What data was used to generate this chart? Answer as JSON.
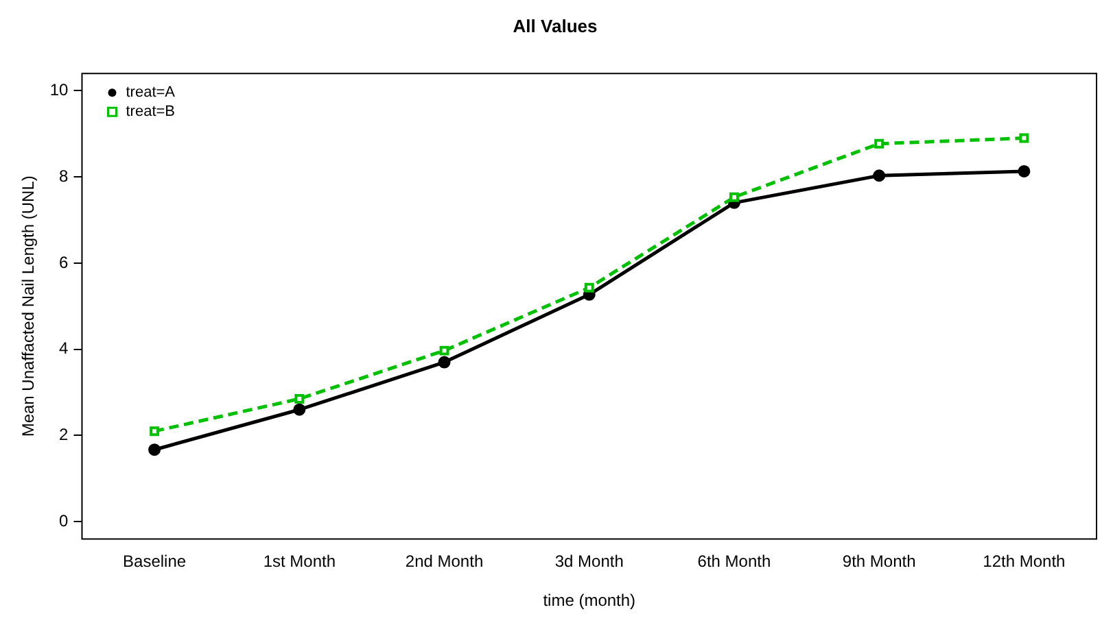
{
  "chart_data": {
    "type": "line",
    "title": "All Values",
    "xlabel": "time (month)",
    "ylabel": "Mean Unaffacted Nail Length (UNL)",
    "categories": [
      "Baseline",
      "1st Month",
      "2nd Month",
      "3d Month",
      "6th Month",
      "9th Month",
      "12th Month"
    ],
    "series": [
      {
        "name": "treat=A",
        "color": "#000000",
        "marker": "circle",
        "line_style": "solid",
        "values": [
          1.67,
          2.6,
          3.7,
          5.27,
          7.4,
          8.03,
          8.13
        ]
      },
      {
        "name": "treat=B",
        "color": "#00c000",
        "marker": "square",
        "line_style": "dashed",
        "values": [
          2.1,
          2.85,
          3.97,
          5.43,
          7.53,
          8.77,
          8.9
        ]
      }
    ],
    "ylim": [
      -0.4,
      10.4
    ],
    "yticks": [
      0,
      2,
      4,
      6,
      8,
      10
    ],
    "grid": false,
    "legend": "top left"
  }
}
